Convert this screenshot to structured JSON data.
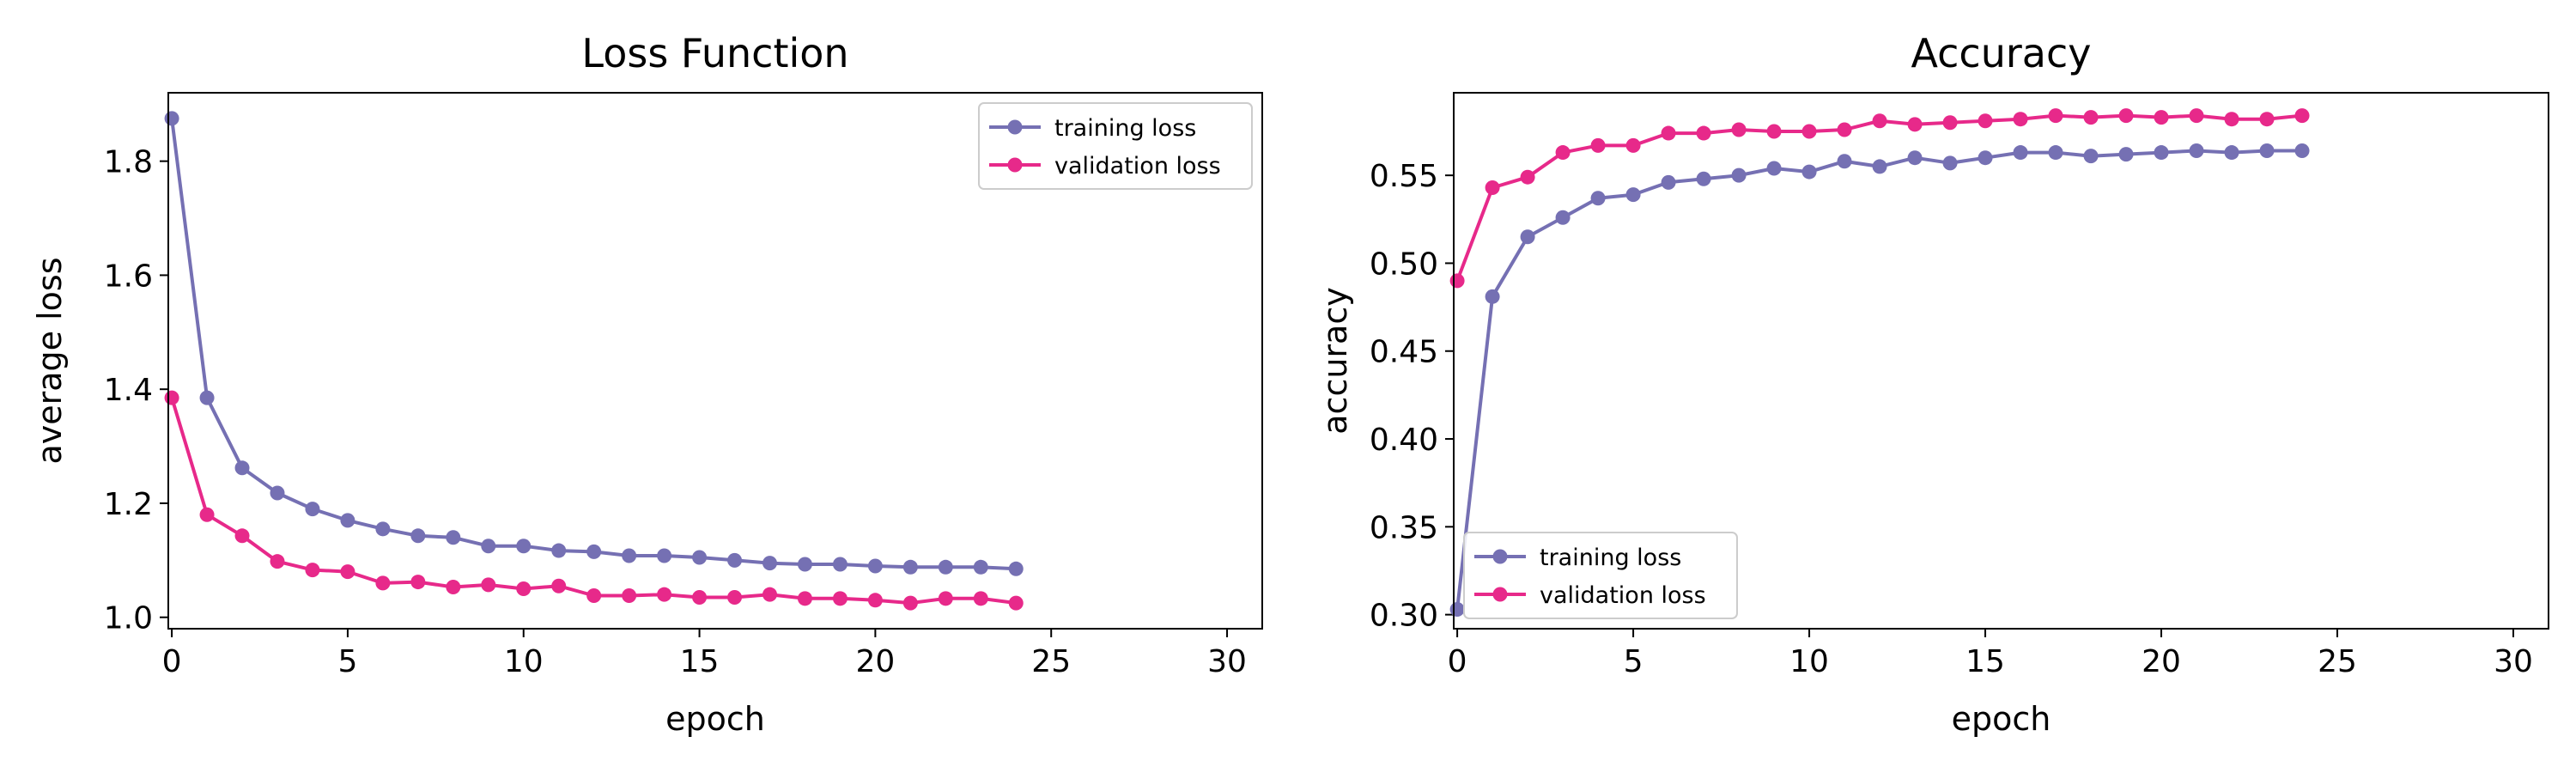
{
  "chart_data": [
    {
      "type": "line",
      "title": "Loss Function",
      "xlabel": "epoch",
      "ylabel": "average loss",
      "xlim": [
        -0.1,
        31
      ],
      "ylim": [
        0.98,
        1.92
      ],
      "xticks": [
        0,
        5,
        10,
        15,
        20,
        25,
        30
      ],
      "yticks": [
        1.0,
        1.2,
        1.4,
        1.6,
        1.8
      ],
      "tick_decimals": 1,
      "grid": false,
      "legend_position": "top-right",
      "x": [
        0,
        1,
        2,
        3,
        4,
        5,
        6,
        7,
        8,
        9,
        10,
        11,
        12,
        13,
        14,
        15,
        16,
        17,
        18,
        19,
        20,
        21,
        22,
        23,
        24
      ],
      "series": [
        {
          "name": "training loss",
          "color": "#7570b3",
          "values": [
            1.875,
            1.385,
            1.262,
            1.218,
            1.19,
            1.17,
            1.155,
            1.143,
            1.14,
            1.125,
            1.125,
            1.117,
            1.115,
            1.108,
            1.108,
            1.105,
            1.1,
            1.095,
            1.093,
            1.093,
            1.09,
            1.088,
            1.088,
            1.088,
            1.085
          ]
        },
        {
          "name": "validation loss",
          "color": "#e7298a",
          "values": [
            1.385,
            1.18,
            1.143,
            1.098,
            1.083,
            1.08,
            1.06,
            1.062,
            1.053,
            1.057,
            1.05,
            1.055,
            1.038,
            1.038,
            1.04,
            1.035,
            1.035,
            1.04,
            1.033,
            1.033,
            1.03,
            1.025,
            1.033,
            1.033,
            1.025
          ]
        }
      ]
    },
    {
      "type": "line",
      "title": "Accuracy",
      "xlabel": "epoch",
      "ylabel": "accuracy",
      "xlim": [
        -0.1,
        31
      ],
      "ylim": [
        0.292,
        0.597
      ],
      "xticks": [
        0,
        5,
        10,
        15,
        20,
        25,
        30
      ],
      "yticks": [
        0.3,
        0.35,
        0.4,
        0.45,
        0.5,
        0.55
      ],
      "tick_decimals": 2,
      "grid": false,
      "legend_position": "bottom-left",
      "x": [
        0,
        1,
        2,
        3,
        4,
        5,
        6,
        7,
        8,
        9,
        10,
        11,
        12,
        13,
        14,
        15,
        16,
        17,
        18,
        19,
        20,
        21,
        22,
        23,
        24
      ],
      "series": [
        {
          "name": "training loss",
          "color": "#7570b3",
          "values": [
            0.303,
            0.481,
            0.515,
            0.526,
            0.537,
            0.539,
            0.546,
            0.548,
            0.55,
            0.554,
            0.552,
            0.558,
            0.555,
            0.56,
            0.557,
            0.56,
            0.563,
            0.563,
            0.561,
            0.562,
            0.563,
            0.564,
            0.563,
            0.564,
            0.564
          ]
        },
        {
          "name": "validation loss",
          "color": "#e7298a",
          "values": [
            0.49,
            0.543,
            0.549,
            0.563,
            0.567,
            0.567,
            0.574,
            0.574,
            0.576,
            0.575,
            0.575,
            0.576,
            0.581,
            0.579,
            0.58,
            0.581,
            0.582,
            0.584,
            0.583,
            0.584,
            0.583,
            0.584,
            0.582,
            0.582,
            0.584
          ]
        }
      ]
    }
  ]
}
